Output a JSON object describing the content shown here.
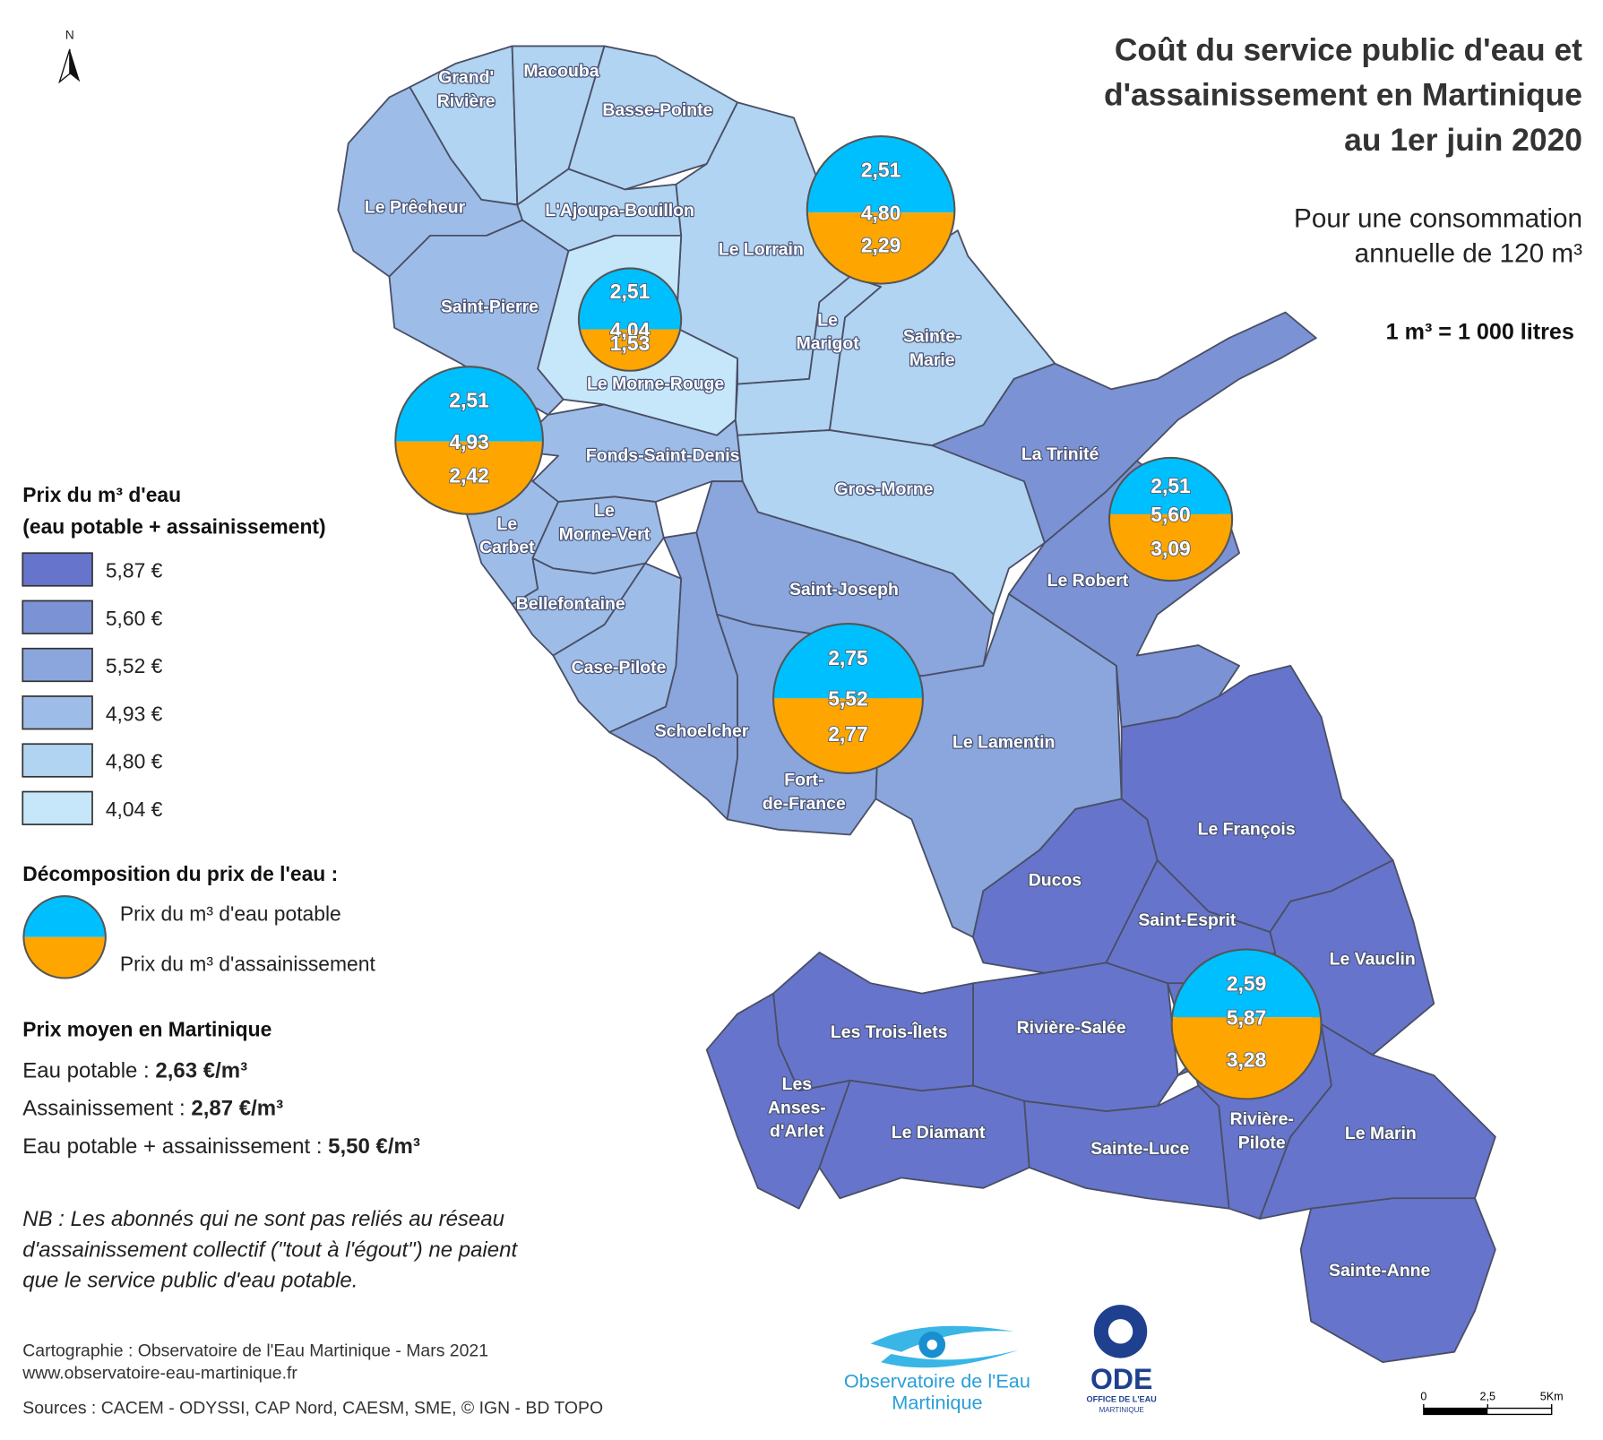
{
  "map": {
    "title": [
      "Coût du service public d'eau et",
      "d'assainissement en Martinique",
      "au 1er juin 2020"
    ],
    "subtitle": [
      "Pour une consommation",
      "annuelle de 120 m³"
    ],
    "conversion": "1 m³ = 1 000 litres",
    "north": "N",
    "communes": [
      {
        "name": [
          "Grand'",
          "Rivière"
        ],
        "color": "#b0d4f1"
      },
      {
        "name": [
          "Macouba"
        ],
        "color": "#b0d4f1"
      },
      {
        "name": [
          "Basse-Pointe"
        ],
        "color": "#b0d4f1"
      },
      {
        "name": [
          "Le Prêcheur"
        ],
        "color": "#9dbde8"
      },
      {
        "name": [
          "L'Ajoupa-Bouillon"
        ],
        "color": "#b0d4f1"
      },
      {
        "name": [
          "Le Lorrain"
        ],
        "color": "#b0d4f1"
      },
      {
        "name": [
          "Saint-Pierre"
        ],
        "color": "#9dbde8"
      },
      {
        "name": [
          "Le Morne-Rouge"
        ],
        "color": "#c6e6fa"
      },
      {
        "name": [
          "Le",
          "Marigot"
        ],
        "color": "#b0d4f1"
      },
      {
        "name": [
          "Sainte-",
          "Marie"
        ],
        "color": "#b0d4f1"
      },
      {
        "name": [
          "Fonds-Saint-Denis"
        ],
        "color": "#9dbde8"
      },
      {
        "name": [
          "Le",
          "Carbet"
        ],
        "color": "#9dbde8"
      },
      {
        "name": [
          "Le",
          "Morne-Vert"
        ],
        "color": "#9dbde8"
      },
      {
        "name": [
          "Bellefontaine"
        ],
        "color": "#9dbde8"
      },
      {
        "name": [
          "Case-Pilote"
        ],
        "color": "#9dbde8"
      },
      {
        "name": [
          "Schoelcher"
        ],
        "color": "#8aa6dc"
      },
      {
        "name": [
          "Gros-Morne"
        ],
        "color": "#b0d4f1"
      },
      {
        "name": [
          "Saint-Joseph"
        ],
        "color": "#8aa6dc"
      },
      {
        "name": [
          "Fort-",
          "de-France"
        ],
        "color": "#8aa6dc"
      },
      {
        "name": [
          "Le Lamentin"
        ],
        "color": "#8aa6dc"
      },
      {
        "name": [
          "La Trinité"
        ],
        "color": "#7b92d4"
      },
      {
        "name": [
          "Le Robert"
        ],
        "color": "#7b92d4"
      },
      {
        "name": [
          "Le François"
        ],
        "color": "#6675cb"
      },
      {
        "name": [
          "Ducos"
        ],
        "color": "#6675cb"
      },
      {
        "name": [
          "Saint-Esprit"
        ],
        "color": "#6675cb"
      },
      {
        "name": [
          "Le Vauclin"
        ],
        "color": "#6675cb"
      },
      {
        "name": [
          "Rivière-Salée"
        ],
        "color": "#6675cb"
      },
      {
        "name": [
          "Les Trois-Îlets"
        ],
        "color": "#6675cb"
      },
      {
        "name": [
          "Les",
          "Anses-",
          "d'Arlet"
        ],
        "color": "#6675cb"
      },
      {
        "name": [
          "Le Diamant"
        ],
        "color": "#6675cb"
      },
      {
        "name": [
          "Sainte-Luce"
        ],
        "color": "#6675cb"
      },
      {
        "name": [
          "Rivière-",
          "Pilote"
        ],
        "color": "#6675cb"
      },
      {
        "name": [
          "Le Marin"
        ],
        "color": "#6675cb"
      },
      {
        "name": [
          "Sainte-Anne"
        ],
        "color": "#6675cb"
      }
    ],
    "pie_colors": {
      "potable": "#00bfff",
      "assainissement": "#ffa500"
    },
    "pies": [
      {
        "values": [
          2.51,
          4.8,
          2.29
        ],
        "value_labels": [
          "2,51",
          "4,80",
          "2,29"
        ]
      },
      {
        "values": [
          2.51,
          4.04,
          1.53
        ],
        "value_labels": [
          "2,51",
          "4,04",
          "1,53"
        ]
      },
      {
        "values": [
          2.51,
          4.93,
          2.42
        ],
        "value_labels": [
          "2,51",
          "4,93",
          "2,42"
        ]
      },
      {
        "values": [
          2.51,
          5.6,
          3.09
        ],
        "value_labels": [
          "2,51",
          "5,60",
          "3,09"
        ]
      },
      {
        "values": [
          2.75,
          5.52,
          2.77
        ],
        "value_labels": [
          "2,75",
          "5,52",
          "2,77"
        ]
      },
      {
        "values": [
          2.59,
          5.87,
          3.28
        ],
        "value_labels": [
          "2,59",
          "5,87",
          "3,28"
        ]
      }
    ]
  },
  "legend": {
    "price_title": [
      "Prix du m³ d'eau",
      "(eau potable + assainissement)"
    ],
    "classes": [
      {
        "label": "5,87 €",
        "color": "#6675cb"
      },
      {
        "label": "5,60 €",
        "color": "#7b92d4"
      },
      {
        "label": "5,52 €",
        "color": "#8aa6dc"
      },
      {
        "label": "4,93 €",
        "color": "#9dbde8"
      },
      {
        "label": "4,80 €",
        "color": "#b0d4f1"
      },
      {
        "label": "4,04 €",
        "color": "#c6e6fa"
      }
    ],
    "decomposition_title": "Décomposition du prix de l'eau :",
    "decomposition_items": [
      "Prix du m³ d'eau potable",
      "Prix du m³ d'assainissement"
    ]
  },
  "averages": {
    "title": "Prix moyen en Martinique",
    "rows": [
      {
        "label": "Eau potable : ",
        "value": "2,63 €/m³"
      },
      {
        "label": "Assainissement : ",
        "value": "2,87 €/m³"
      },
      {
        "label": "Eau potable + assainissement : ",
        "value": "5,50 €/m³"
      }
    ]
  },
  "note": [
    "NB : Les abonnés qui ne sont pas reliés au réseau",
    "d'assainissement collectif (\"tout à l'égout\") ne paient",
    "que le service public d'eau potable."
  ],
  "credits": [
    "Cartographie : Observatoire de l'Eau Martinique - Mars 2021",
    "www.observatoire-eau-martinique.fr",
    "Sources : CACEM - ODYSSI, CAP Nord, CAESM,  SME, © IGN - BD TOPO"
  ],
  "logos": {
    "observatoire": [
      "Observatoire de l'Eau",
      "Martinique"
    ],
    "ode": [
      "ODE",
      "OFFICE DE L'EAU",
      "MARTINIQUE"
    ]
  },
  "scale_bar": {
    "ticks": [
      {
        "value": 0,
        "label": "0"
      },
      {
        "value": 2.5,
        "label": "2,5"
      },
      {
        "value": 5,
        "label": "5Km"
      }
    ]
  }
}
